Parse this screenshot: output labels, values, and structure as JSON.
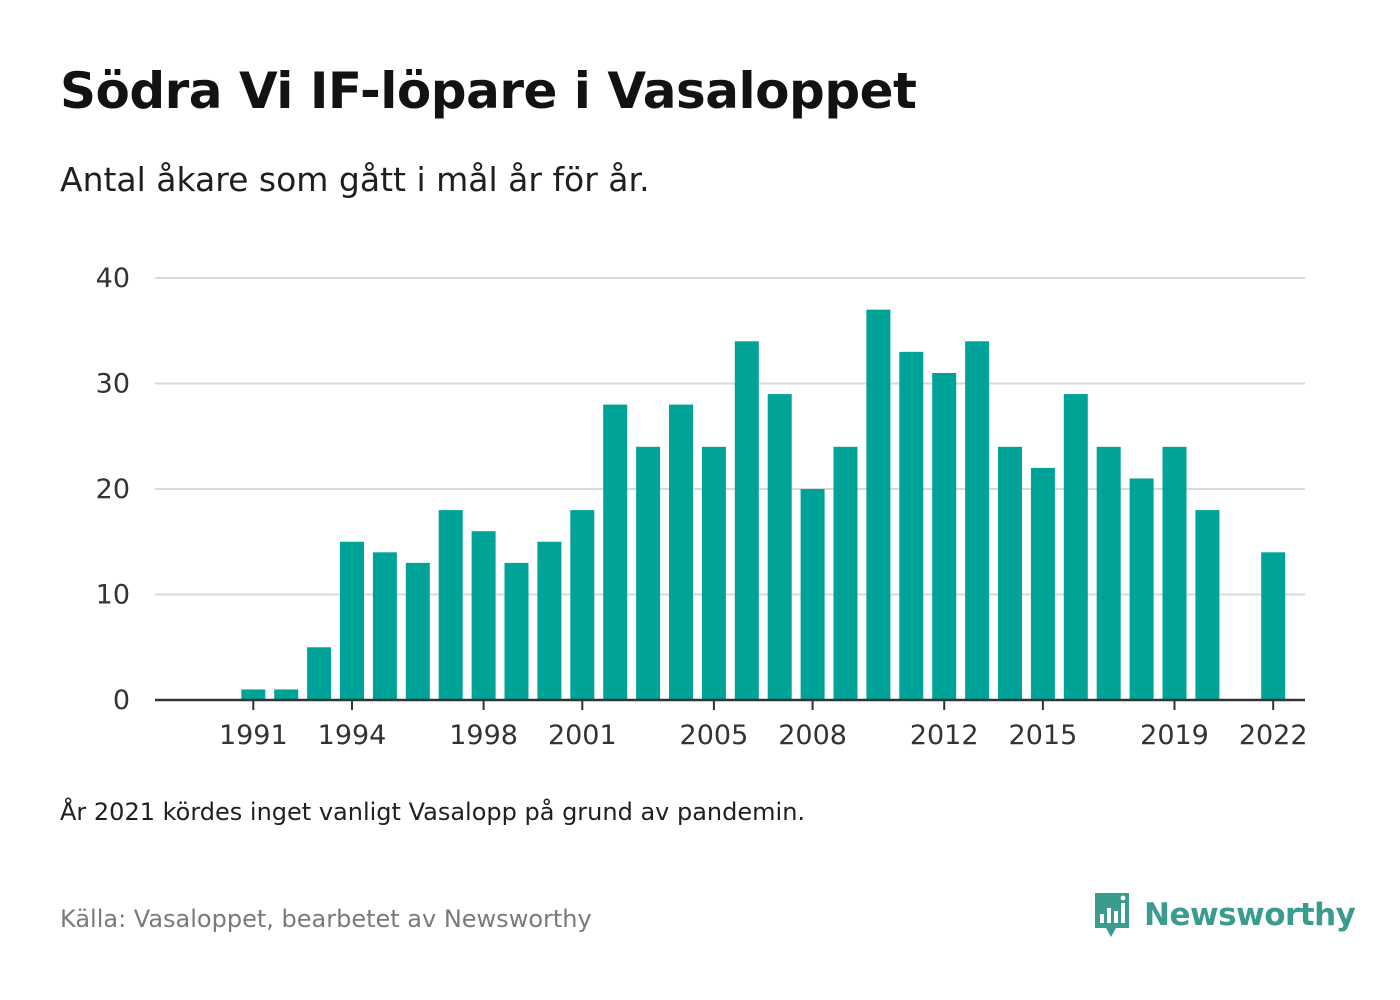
{
  "title": "Södra Vi IF-löpare i Vasaloppet",
  "subtitle": "Antal åkare som gått i mål år för år.",
  "note": "År 2021 kördes inget vanligt Vasalopp på grund av pandemin.",
  "source": "Källa: Vasaloppet, bearbetet av Newsworthy",
  "brand": {
    "name": "Newsworthy",
    "icon": "newsworthy-logo-icon",
    "color": "#3a9b8f"
  },
  "colors": {
    "bar": "#00a398",
    "grid": "#d9d9d9",
    "axis": "#333333"
  },
  "chart_data": {
    "type": "bar",
    "title": "Södra Vi IF-löpare i Vasaloppet",
    "subtitle": "Antal åkare som gått i mål år för år.",
    "xlabel": "",
    "ylabel": "",
    "ylim": [
      0,
      40
    ],
    "yticks": [
      0,
      10,
      20,
      30,
      40
    ],
    "xticks": [
      1991,
      1994,
      1998,
      2001,
      2005,
      2008,
      2012,
      2015,
      2019,
      2022
    ],
    "grid": true,
    "legend": "none",
    "categories": [
      1989,
      1990,
      1991,
      1992,
      1993,
      1994,
      1995,
      1996,
      1997,
      1998,
      1999,
      2000,
      2001,
      2002,
      2003,
      2004,
      2005,
      2006,
      2007,
      2008,
      2009,
      2010,
      2011,
      2012,
      2013,
      2014,
      2015,
      2016,
      2017,
      2018,
      2019,
      2020,
      2021,
      2022
    ],
    "values": [
      0,
      0,
      1,
      1,
      5,
      15,
      14,
      13,
      18,
      16,
      13,
      15,
      18,
      28,
      24,
      28,
      24,
      34,
      29,
      20,
      24,
      37,
      33,
      31,
      34,
      24,
      22,
      29,
      24,
      21,
      24,
      18,
      null,
      14
    ]
  }
}
